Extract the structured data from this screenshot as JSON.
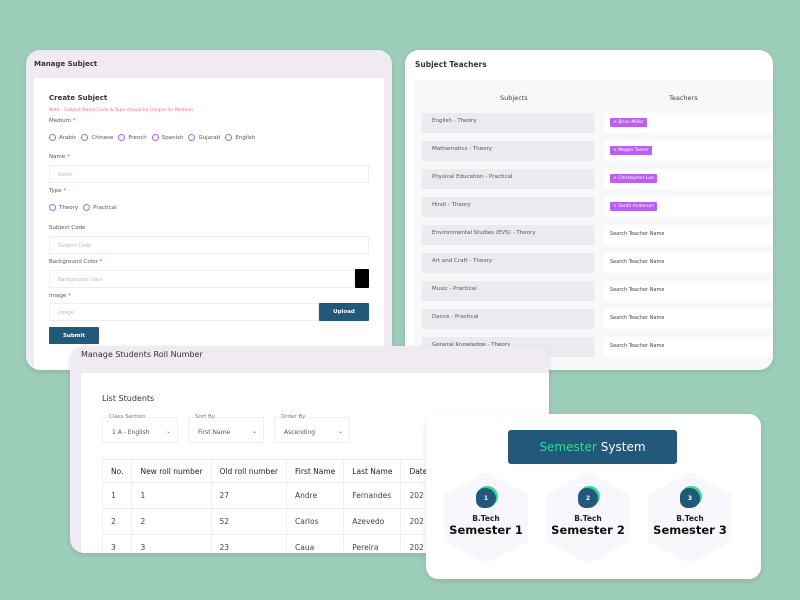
{
  "manage_subject": {
    "title": "Manage Subject",
    "card_title": "Create Subject",
    "note": "Note : Subject Name,Code & Type should be Unique for Medium",
    "medium_label": "Medium",
    "mediums": [
      "Arabic",
      "Chinese",
      "French",
      "Spanish",
      "Gujarati",
      "English"
    ],
    "name_label": "Name",
    "name_placeholder": "Name",
    "type_label": "Type",
    "types": [
      "Theory",
      "Practical"
    ],
    "code_label": "Subject Code",
    "code_placeholder": "Subject Code",
    "bg_label": "Background Color",
    "bg_placeholder": "Background Color",
    "bg_color": "#000000",
    "image_label": "Image",
    "image_placeholder": "Image",
    "upload": "Upload",
    "submit": "Submit",
    "required": "*"
  },
  "subject_teachers": {
    "title": "Subject Teachers",
    "col_subjects": "Subjects",
    "col_teachers": "Teachers",
    "rows": [
      {
        "subject": "English - Theory",
        "teacher": "× Brian Miller"
      },
      {
        "subject": "Mathematics - Theory",
        "teacher": "× Megan Turner"
      },
      {
        "subject": "Physical Education - Practical",
        "teacher": "× Christopher Lee"
      },
      {
        "subject": "Hindi - Theory",
        "teacher": "× Sarah Anderson"
      },
      {
        "subject": "Environmental Studies (EVS) - Theory",
        "placeholder": "Search Teacher Name"
      },
      {
        "subject": "Art and Craft - Theory",
        "placeholder": "Search Teacher Name"
      },
      {
        "subject": "Music - Practical",
        "placeholder": "Search Teacher Name"
      },
      {
        "subject": "Dance - Practical",
        "placeholder": "Search Teacher Name"
      },
      {
        "subject": "General Knowledge - Theory",
        "placeholder": "Search Teacher Name"
      }
    ]
  },
  "roll_numbers": {
    "title": "Manage Students Roll Number",
    "card_title": "List Students",
    "filters": [
      {
        "label": "Class Section",
        "value": "1 A - English"
      },
      {
        "label": "Sort By",
        "value": "First Name"
      },
      {
        "label": "Order By",
        "value": "Ascending"
      }
    ],
    "columns": [
      "No.",
      "New roll number",
      "Old roll number",
      "First Name",
      "Last Name",
      "Date"
    ],
    "rows": [
      [
        "1",
        "1",
        "27",
        "Andre",
        "Fernandes",
        "202"
      ],
      [
        "2",
        "2",
        "52",
        "Carlos",
        "Azevedo",
        "202"
      ],
      [
        "3",
        "3",
        "23",
        "Caua",
        "Pereira",
        "202"
      ]
    ]
  },
  "semester": {
    "title_accent": "Semester",
    "title_rest": "System",
    "accent_color": "#2edc96",
    "items": [
      {
        "num": "1",
        "program": "B.Tech",
        "name": "Semester 1"
      },
      {
        "num": "2",
        "program": "B.Tech",
        "name": "Semester 2"
      },
      {
        "num": "3",
        "program": "B.Tech",
        "name": "Semester 3"
      }
    ]
  }
}
